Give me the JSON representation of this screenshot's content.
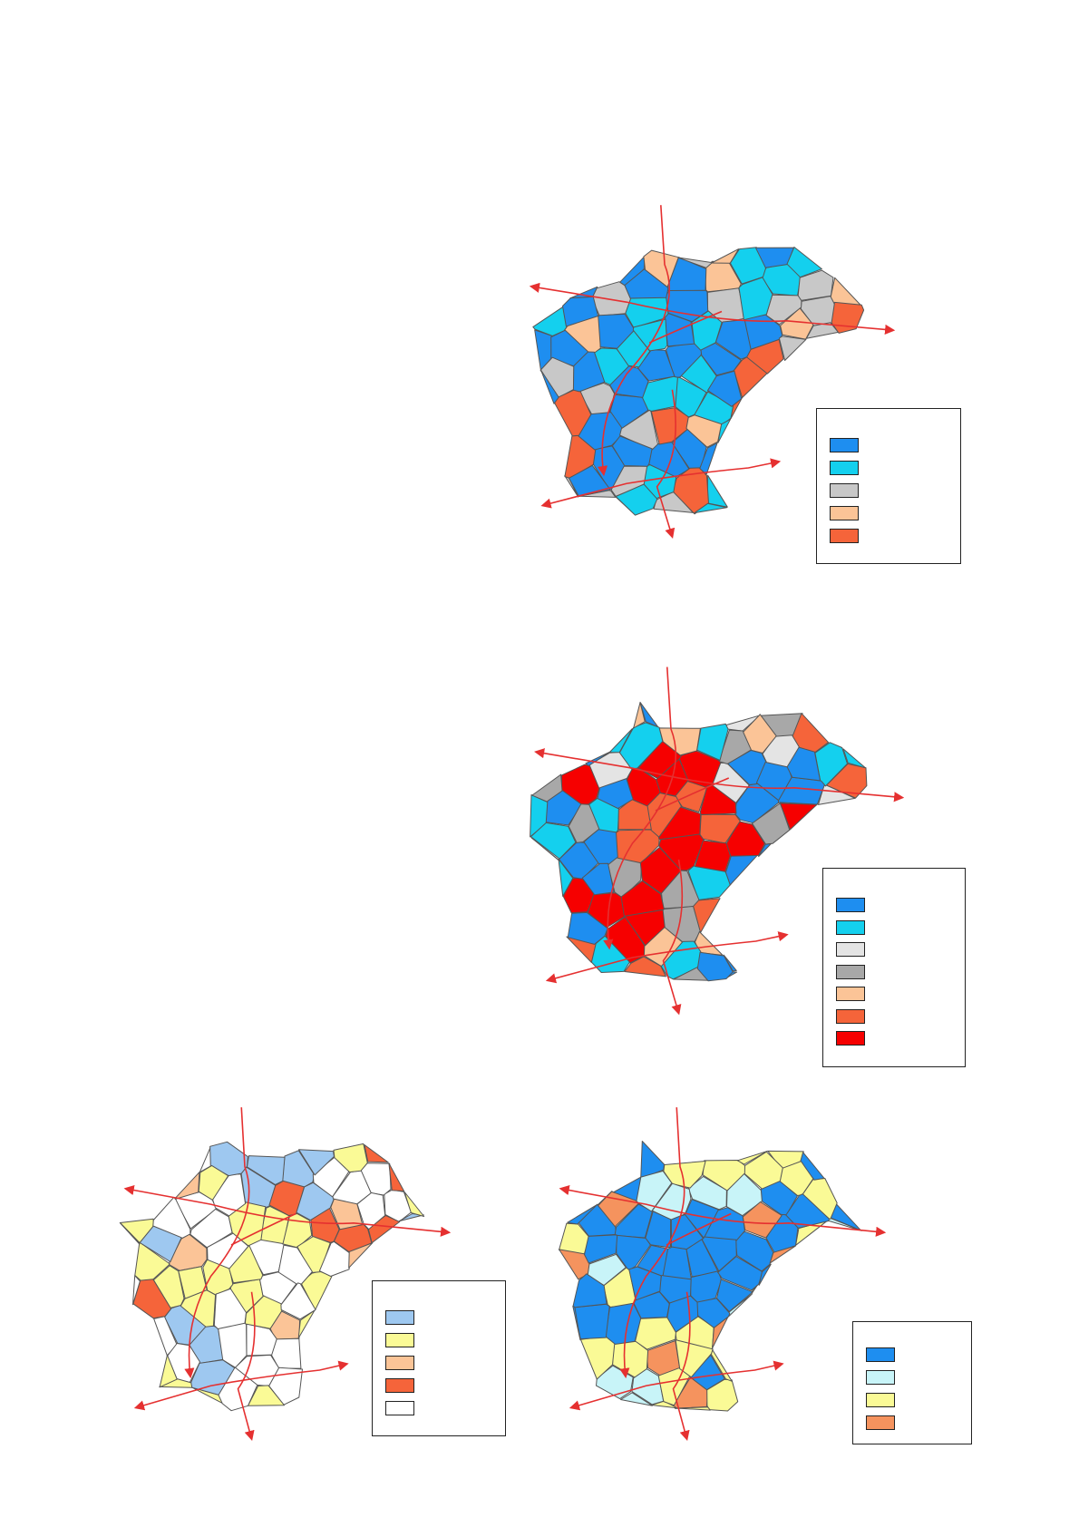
{
  "maps": [
    {
      "id": "map-a",
      "legend_colors": [
        "#1e8ef0",
        "#14d0ee",
        "#c8c8c8",
        "#fbc497",
        "#f5643a"
      ],
      "region_palette": [
        "#1e8ef0",
        "#14d0ee",
        "#c8c8c8",
        "#fbc497",
        "#f5643a",
        "#1e8ef0",
        "#14d0ee",
        "#c8c8c8"
      ]
    },
    {
      "id": "map-b",
      "legend_colors": [
        "#1e8ef0",
        "#14d0ee",
        "#e4e4e4",
        "#a8a8a8",
        "#fbc497",
        "#f5643a",
        "#f60000"
      ],
      "region_palette": [
        "#1e8ef0",
        "#14d0ee",
        "#e4e4e4",
        "#a8a8a8",
        "#fbc497",
        "#f5643a",
        "#f60000",
        "#1e8ef0",
        "#14d0ee"
      ]
    },
    {
      "id": "map-c",
      "legend_colors": [
        "#9ec8f0",
        "#fafa96",
        "#fbc497",
        "#f5643a",
        "#ffffff"
      ],
      "region_palette": [
        "#9ec8f0",
        "#fafa96",
        "#fbc497",
        "#f5643a",
        "#ffffff",
        "#fafa96",
        "#ffffff"
      ]
    },
    {
      "id": "map-d",
      "legend_colors": [
        "#1e8ef0",
        "#c8f4f8",
        "#fafa96",
        "#f5935e"
      ],
      "region_palette": [
        "#1e8ef0",
        "#c8f4f8",
        "#fafa96",
        "#f5935e",
        "#1e8ef0",
        "#fafa96"
      ]
    }
  ]
}
